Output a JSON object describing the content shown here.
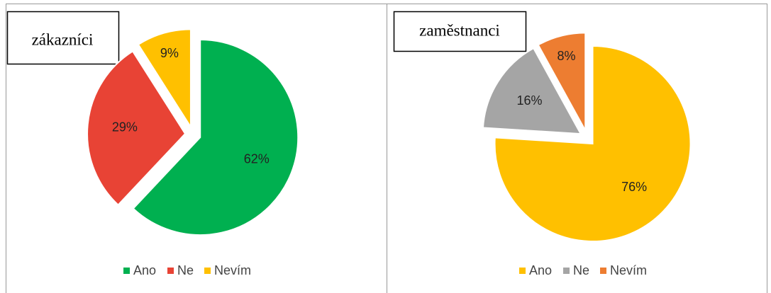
{
  "chart_data": [
    {
      "type": "pie",
      "title": "zákazníci",
      "categories": [
        "Ano",
        "Ne",
        "Nevím"
      ],
      "values": [
        62,
        29,
        9
      ],
      "value_labels": [
        "62%",
        "29%",
        "9%"
      ],
      "colors": [
        "#00b050",
        "#e84335",
        "#ffc000"
      ],
      "legend": "bottom"
    },
    {
      "type": "pie",
      "title": "zaměstnanci",
      "categories": [
        "Ano",
        "Ne",
        "Nevím"
      ],
      "values": [
        76,
        16,
        8
      ],
      "value_labels": [
        "76%",
        "16%",
        "8%"
      ],
      "colors": [
        "#ffc000",
        "#a5a5a5",
        "#ed7d31"
      ],
      "legend": "bottom"
    }
  ]
}
